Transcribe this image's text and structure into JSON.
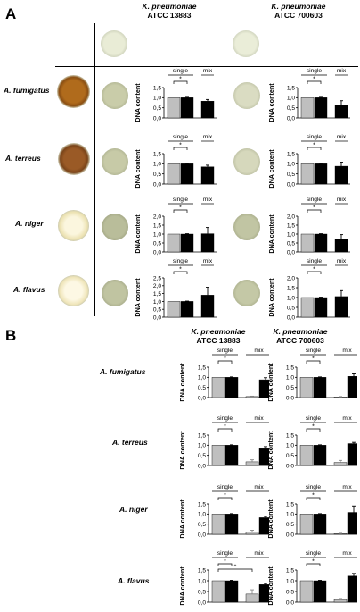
{
  "panelA": {
    "label": "A",
    "columns": [
      {
        "species": "K. pneumoniae",
        "strain": "ATCC 13883"
      },
      {
        "species": "K. pneumoniae",
        "strain": "ATCC 700603"
      }
    ],
    "rows": [
      {
        "label": "A. fumigatus"
      },
      {
        "label": "A. terreus"
      },
      {
        "label": "A. niger"
      },
      {
        "label": "A. flavus"
      }
    ]
  },
  "panelB": {
    "label": "B",
    "columns": [
      {
        "species": "K. pneumoniae",
        "strain": "ATCC 13883"
      },
      {
        "species": "K. pneumoniae",
        "strain": "ATCC 700603"
      }
    ],
    "rows": [
      {
        "label": "A. fumigatus"
      },
      {
        "label": "A. terreus"
      },
      {
        "label": "A. niger"
      },
      {
        "label": "A. flavus"
      }
    ]
  },
  "chart_labels": {
    "ylabel": "DNA content",
    "group_single": "single",
    "group_mix": "mix",
    "sig": "*"
  },
  "colors": {
    "gray_bar": "#bfbfbf",
    "black_bar": "#000000",
    "agar_pale": "#e6e9d2",
    "agar_olive": "#b9bd9a",
    "fungus_fumigatus": "#b06b1c",
    "fungus_terreus": "#9a5a26",
    "fungus_niger": "#f4ecc4",
    "fungus_flavus": "#f6eec8"
  },
  "chart_data": [
    {
      "panel": "A",
      "row": "A. fumigatus",
      "column": "ATCC 13883",
      "type": "bar",
      "ylim": [
        0,
        1.5
      ],
      "yticks": [
        "0,0",
        "0,5",
        "1,0",
        "1,5"
      ],
      "bars": [
        {
          "group": "single",
          "color": "gray",
          "value": 1.0
        },
        {
          "group": "single",
          "color": "black",
          "value": 1.0,
          "err": 0.02
        },
        {
          "group": "mix",
          "color": "black",
          "value": 0.83,
          "err": 0.08
        }
      ],
      "sig": [
        [
          0,
          1
        ]
      ]
    },
    {
      "panel": "A",
      "row": "A. fumigatus",
      "column": "ATCC 700603",
      "type": "bar",
      "ylim": [
        0,
        1.5
      ],
      "yticks": [
        "0,0",
        "0,5",
        "1,0",
        "1,5"
      ],
      "bars": [
        {
          "group": "single",
          "color": "gray",
          "value": 1.0
        },
        {
          "group": "single",
          "color": "black",
          "value": 1.0,
          "err": 0.02
        },
        {
          "group": "mix",
          "color": "black",
          "value": 0.65,
          "err": 0.2
        }
      ],
      "sig": [
        [
          0,
          1
        ]
      ]
    },
    {
      "panel": "A",
      "row": "A. terreus",
      "column": "ATCC 13883",
      "type": "bar",
      "ylim": [
        0,
        1.5
      ],
      "yticks": [
        "0,0",
        "0,5",
        "1,0",
        "1,5"
      ],
      "bars": [
        {
          "group": "single",
          "color": "gray",
          "value": 1.0
        },
        {
          "group": "single",
          "color": "black",
          "value": 1.0,
          "err": 0.02
        },
        {
          "group": "mix",
          "color": "black",
          "value": 0.85,
          "err": 0.08
        }
      ],
      "sig": [
        [
          0,
          1
        ]
      ]
    },
    {
      "panel": "A",
      "row": "A. terreus",
      "column": "ATCC 700603",
      "type": "bar",
      "ylim": [
        0,
        1.5
      ],
      "yticks": [
        "0,0",
        "0,5",
        "1,0",
        "1,5"
      ],
      "bars": [
        {
          "group": "single",
          "color": "gray",
          "value": 1.0
        },
        {
          "group": "single",
          "color": "black",
          "value": 1.0,
          "err": 0.02
        },
        {
          "group": "mix",
          "color": "black",
          "value": 0.88,
          "err": 0.2
        }
      ],
      "sig": [
        [
          0,
          1
        ]
      ]
    },
    {
      "panel": "A",
      "row": "A. niger",
      "column": "ATCC 13883",
      "type": "bar",
      "ylim": [
        0,
        2.0
      ],
      "yticks": [
        "0,0",
        "0,5",
        "1,0",
        "1,5",
        "2,0"
      ],
      "bars": [
        {
          "group": "single",
          "color": "gray",
          "value": 1.0
        },
        {
          "group": "single",
          "color": "black",
          "value": 1.0,
          "err": 0.02
        },
        {
          "group": "mix",
          "color": "black",
          "value": 1.02,
          "err": 0.35
        }
      ],
      "sig": [
        [
          0,
          1
        ]
      ]
    },
    {
      "panel": "A",
      "row": "A. niger",
      "column": "ATCC 700603",
      "type": "bar",
      "ylim": [
        0,
        2.0
      ],
      "yticks": [
        "0,0",
        "0,5",
        "1,0",
        "1,5",
        "2,0"
      ],
      "bars": [
        {
          "group": "single",
          "color": "gray",
          "value": 1.0
        },
        {
          "group": "single",
          "color": "black",
          "value": 1.0,
          "err": 0.02
        },
        {
          "group": "mix",
          "color": "black",
          "value": 0.72,
          "err": 0.25
        }
      ],
      "sig": [
        [
          0,
          1
        ]
      ]
    },
    {
      "panel": "A",
      "row": "A. flavus",
      "column": "ATCC 13883",
      "type": "bar",
      "ylim": [
        0,
        2.5
      ],
      "yticks": [
        "0,0",
        "0,5",
        "1,0",
        "1,5",
        "2,0",
        "2,5"
      ],
      "bars": [
        {
          "group": "single",
          "color": "gray",
          "value": 1.0
        },
        {
          "group": "single",
          "color": "black",
          "value": 1.0,
          "err": 0.02
        },
        {
          "group": "mix",
          "color": "black",
          "value": 1.4,
          "err": 0.5
        }
      ],
      "sig": [
        [
          0,
          1
        ]
      ]
    },
    {
      "panel": "A",
      "row": "A. flavus",
      "column": "ATCC 700603",
      "type": "bar",
      "ylim": [
        0,
        2.0
      ],
      "yticks": [
        "0,0",
        "0,5",
        "1,0",
        "1,5",
        "2,0"
      ],
      "bars": [
        {
          "group": "single",
          "color": "gray",
          "value": 1.0
        },
        {
          "group": "single",
          "color": "black",
          "value": 1.0,
          "err": 0.02
        },
        {
          "group": "mix",
          "color": "black",
          "value": 1.05,
          "err": 0.3
        }
      ],
      "sig": [
        [
          0,
          1
        ]
      ]
    },
    {
      "panel": "B",
      "row": "A. fumigatus",
      "column": "ATCC 13883",
      "type": "bar",
      "ylim": [
        0,
        1.5
      ],
      "yticks": [
        "0,0",
        "0,5",
        "1,0",
        "1,5"
      ],
      "bars": [
        {
          "group": "single",
          "color": "gray",
          "value": 1.0
        },
        {
          "group": "single",
          "color": "black",
          "value": 1.0,
          "err": 0.02
        },
        {
          "group": "mix",
          "color": "gray",
          "value": 0.05,
          "err": 0.02
        },
        {
          "group": "mix",
          "color": "black",
          "value": 0.88,
          "err": 0.1
        }
      ],
      "sig": [
        [
          0,
          1
        ]
      ]
    },
    {
      "panel": "B",
      "row": "A. fumigatus",
      "column": "ATCC 700603",
      "type": "bar",
      "ylim": [
        0,
        1.5
      ],
      "yticks": [
        "0,0",
        "0,5",
        "1,0",
        "1,5"
      ],
      "bars": [
        {
          "group": "single",
          "color": "gray",
          "value": 1.0
        },
        {
          "group": "single",
          "color": "black",
          "value": 1.0,
          "err": 0.02
        },
        {
          "group": "mix",
          "color": "gray",
          "value": 0.03,
          "err": 0.02
        },
        {
          "group": "mix",
          "color": "black",
          "value": 1.05,
          "err": 0.12
        }
      ],
      "sig": [
        [
          0,
          1
        ]
      ]
    },
    {
      "panel": "B",
      "row": "A. terreus",
      "column": "ATCC 13883",
      "type": "bar",
      "ylim": [
        0,
        1.5
      ],
      "yticks": [
        "0,0",
        "0,5",
        "1,0",
        "1,5"
      ],
      "bars": [
        {
          "group": "single",
          "color": "gray",
          "value": 1.0
        },
        {
          "group": "single",
          "color": "black",
          "value": 1.0,
          "err": 0.02
        },
        {
          "group": "mix",
          "color": "gray",
          "value": 0.18,
          "err": 0.1
        },
        {
          "group": "mix",
          "color": "black",
          "value": 0.87,
          "err": 0.06
        }
      ],
      "sig": [
        [
          0,
          1
        ]
      ]
    },
    {
      "panel": "B",
      "row": "A. terreus",
      "column": "ATCC 700603",
      "type": "bar",
      "ylim": [
        0,
        1.5
      ],
      "yticks": [
        "0,0",
        "0,5",
        "1,0",
        "1,5"
      ],
      "bars": [
        {
          "group": "single",
          "color": "gray",
          "value": 1.0
        },
        {
          "group": "single",
          "color": "black",
          "value": 1.0,
          "err": 0.02
        },
        {
          "group": "mix",
          "color": "gray",
          "value": 0.15,
          "err": 0.1
        },
        {
          "group": "mix",
          "color": "black",
          "value": 1.08,
          "err": 0.06
        }
      ],
      "sig": [
        [
          0,
          1
        ]
      ]
    },
    {
      "panel": "B",
      "row": "A. niger",
      "column": "ATCC 13883",
      "type": "bar",
      "ylim": [
        0,
        1.5
      ],
      "yticks": [
        "0,0",
        "0,5",
        "1,0",
        "1,5"
      ],
      "bars": [
        {
          "group": "single",
          "color": "gray",
          "value": 1.0
        },
        {
          "group": "single",
          "color": "black",
          "value": 1.0,
          "err": 0.02
        },
        {
          "group": "mix",
          "color": "gray",
          "value": 0.12,
          "err": 0.08
        },
        {
          "group": "mix",
          "color": "black",
          "value": 0.82,
          "err": 0.06
        }
      ],
      "sig": [
        [
          0,
          1
        ]
      ]
    },
    {
      "panel": "B",
      "row": "A. niger",
      "column": "ATCC 700603",
      "type": "bar",
      "ylim": [
        0,
        1.5
      ],
      "yticks": [
        "0,0",
        "0,5",
        "1,0",
        "1,5"
      ],
      "bars": [
        {
          "group": "single",
          "color": "gray",
          "value": 1.0
        },
        {
          "group": "single",
          "color": "black",
          "value": 1.0,
          "err": 0.02
        },
        {
          "group": "mix",
          "color": "gray",
          "value": 0.03,
          "err": 0.02
        },
        {
          "group": "mix",
          "color": "black",
          "value": 1.08,
          "err": 0.32
        }
      ],
      "sig": [
        [
          0,
          1
        ]
      ]
    },
    {
      "panel": "B",
      "row": "A. flavus",
      "column": "ATCC 13883",
      "type": "bar",
      "ylim": [
        0,
        1.5
      ],
      "yticks": [
        "0,0",
        "0,5",
        "1,0",
        "1,5"
      ],
      "bars": [
        {
          "group": "single",
          "color": "gray",
          "value": 1.0
        },
        {
          "group": "single",
          "color": "black",
          "value": 1.0,
          "err": 0.02
        },
        {
          "group": "mix",
          "color": "gray",
          "value": 0.38,
          "err": 0.2
        },
        {
          "group": "mix",
          "color": "black",
          "value": 0.82,
          "err": 0.05
        }
      ],
      "sig": [
        [
          0,
          1
        ],
        [
          0,
          2
        ]
      ]
    },
    {
      "panel": "B",
      "row": "A. flavus",
      "column": "ATCC 700603",
      "type": "bar",
      "ylim": [
        0,
        1.5
      ],
      "yticks": [
        "0,0",
        "0,5",
        "1,0",
        "1,5"
      ],
      "bars": [
        {
          "group": "single",
          "color": "gray",
          "value": 1.0
        },
        {
          "group": "single",
          "color": "black",
          "value": 1.0,
          "err": 0.02
        },
        {
          "group": "mix",
          "color": "gray",
          "value": 0.12,
          "err": 0.05
        },
        {
          "group": "mix",
          "color": "black",
          "value": 1.22,
          "err": 0.12
        }
      ],
      "sig": [
        [
          0,
          1
        ]
      ]
    }
  ]
}
